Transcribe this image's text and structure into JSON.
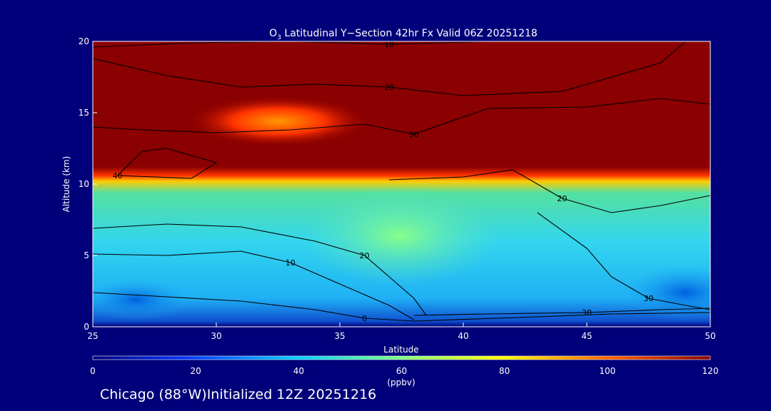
{
  "colors": {
    "background": "#00007a",
    "text": "#ffffff",
    "contour": "#000000"
  },
  "chart_data": {
    "type": "heatmap",
    "title_prefix": "O",
    "title_sub": "3",
    "title_rest": " Latitudinal Y−Section 42hr  Fx Valid 06Z 20251218",
    "xlabel": "Latitude",
    "ylabel": "Altitude (km)",
    "xlim": [
      25,
      50
    ],
    "ylim": [
      0,
      20
    ],
    "xticks": [
      "25",
      "30",
      "35",
      "40",
      "45",
      "50"
    ],
    "yticks": [
      "0",
      "5",
      "10",
      "15",
      "20"
    ],
    "colorbar": {
      "label": "(ppbv)",
      "range": [
        0,
        120
      ],
      "ticks": [
        "0",
        "20",
        "40",
        "60",
        "80",
        "100",
        "120"
      ],
      "colormap": [
        "#00007a",
        "#0033ff",
        "#00ccff",
        "#7fff7f",
        "#ffff00",
        "#ff6600",
        "#8b0000"
      ]
    },
    "fields": [
      {
        "name": "tropopause_band",
        "lat": [
          25,
          50
        ],
        "altitude": [
          10.5,
          20
        ],
        "value": 120
      },
      {
        "name": "upper_core",
        "lat": [
          29,
          35
        ],
        "altitude": [
          13.5,
          16
        ],
        "value": 95
      },
      {
        "name": "midlevel",
        "lat": [
          25,
          50
        ],
        "altitude": [
          0,
          10.5
        ],
        "value": 45
      }
    ],
    "contours": [
      {
        "label": "10",
        "points": [
          [
            25,
            19.6
          ],
          [
            29,
            19.9
          ],
          [
            33,
            20
          ],
          [
            37,
            19.8
          ],
          [
            41,
            20
          ],
          [
            46,
            20
          ],
          [
            50,
            20
          ]
        ]
      },
      {
        "label": "20",
        "points": [
          [
            25,
            18.8
          ],
          [
            28,
            17.6
          ],
          [
            31,
            16.8
          ],
          [
            34,
            17.0
          ],
          [
            37,
            16.8
          ],
          [
            40,
            16.2
          ],
          [
            44,
            16.5
          ],
          [
            48,
            18.5
          ],
          [
            49,
            20
          ]
        ]
      },
      {
        "label": "30",
        "points": [
          [
            25,
            14.0
          ],
          [
            27,
            13.8
          ],
          [
            30,
            13.6
          ],
          [
            33,
            13.8
          ],
          [
            36,
            14.2
          ],
          [
            38,
            13.5
          ],
          [
            41,
            15.3
          ],
          [
            45,
            15.4
          ],
          [
            48,
            16.0
          ],
          [
            50,
            15.6
          ]
        ]
      },
      {
        "label": "40",
        "points": [
          [
            28,
            12.5
          ],
          [
            30,
            11.5
          ],
          [
            29,
            10.4
          ],
          [
            26,
            10.6
          ],
          [
            27,
            12.3
          ],
          [
            28,
            12.5
          ]
        ]
      },
      {
        "label": "20",
        "points": [
          [
            37,
            10.3
          ],
          [
            40,
            10.5
          ],
          [
            42,
            11.0
          ],
          [
            44,
            9.0
          ],
          [
            46,
            8.0
          ],
          [
            48,
            8.5
          ],
          [
            50,
            9.2
          ]
        ]
      },
      {
        "label": "30",
        "points": [
          [
            43,
            8.0
          ],
          [
            45,
            5.5
          ],
          [
            46,
            3.5
          ],
          [
            47.5,
            2.0
          ],
          [
            49,
            1.5
          ],
          [
            50,
            1.2
          ]
        ]
      },
      {
        "label": "20",
        "points": [
          [
            25,
            6.9
          ],
          [
            28,
            7.2
          ],
          [
            31,
            7.0
          ],
          [
            34,
            6.0
          ],
          [
            36,
            5.0
          ],
          [
            37,
            3.5
          ],
          [
            38,
            2.0
          ],
          [
            38.5,
            0.8
          ]
        ]
      },
      {
        "label": "10",
        "points": [
          [
            25,
            5.1
          ],
          [
            28,
            5.0
          ],
          [
            31,
            5.3
          ],
          [
            33,
            4.5
          ],
          [
            35,
            3.0
          ],
          [
            37,
            1.5
          ],
          [
            38,
            0.5
          ]
        ]
      },
      {
        "label": "0",
        "points": [
          [
            25,
            2.4
          ],
          [
            28,
            2.1
          ],
          [
            31,
            1.8
          ],
          [
            34,
            1.2
          ],
          [
            36,
            0.6
          ],
          [
            38,
            0.4
          ],
          [
            43,
            0.7
          ],
          [
            46,
            0.9
          ],
          [
            50,
            1.0
          ]
        ]
      },
      {
        "label": "30",
        "points": [
          [
            38,
            0.8
          ],
          [
            41,
            0.9
          ],
          [
            45,
            1.0
          ],
          [
            48,
            1.2
          ],
          [
            50,
            1.3
          ]
        ]
      }
    ],
    "footer": "Chicago (88°W)Initialized 12Z 20251216"
  }
}
